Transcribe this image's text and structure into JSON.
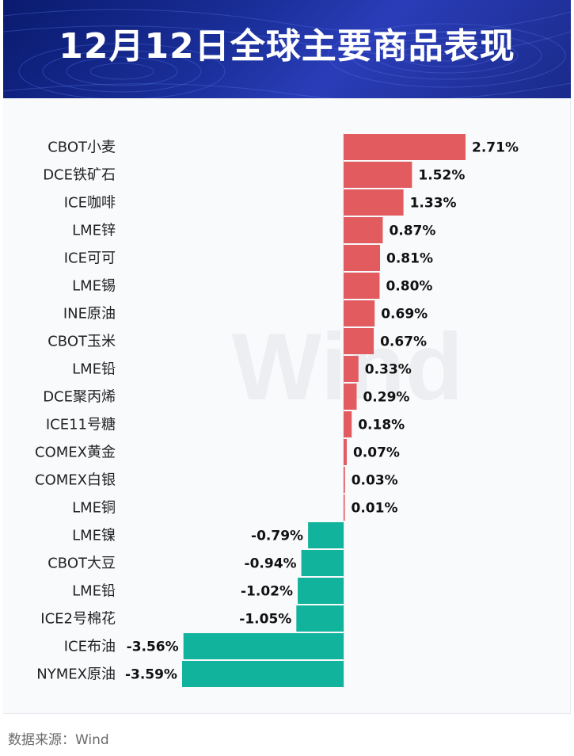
{
  "title": "12月12日全球主要商品表现",
  "source": "数据来源：Wind",
  "watermark": "Wind",
  "colors": {
    "positive": "#e15b5f",
    "negative": "#12b39c",
    "header_bg": "#1a2a8a",
    "panel_bg": "#f9fafc"
  },
  "chart_data": {
    "type": "bar",
    "orientation": "horizontal",
    "unit": "%",
    "categories": [
      "CBOT小麦",
      "DCE铁矿石",
      "ICE咖啡",
      "LME锌",
      "ICE可可",
      "LME锡",
      "INE原油",
      "CBOT玉米",
      "LME铅",
      "DCE聚丙烯",
      "ICE11号糖",
      "COMEX黄金",
      "COMEX白银",
      "LME铜",
      "LME镍",
      "CBOT大豆",
      "LME铅",
      "ICE2号棉花",
      "ICE布油",
      "NYMEX原油"
    ],
    "values": [
      2.71,
      1.52,
      1.33,
      0.87,
      0.81,
      0.8,
      0.69,
      0.67,
      0.33,
      0.29,
      0.18,
      0.07,
      0.03,
      0.01,
      -0.79,
      -0.94,
      -1.02,
      -1.05,
      -3.56,
      -3.59
    ],
    "labels": [
      "2.71%",
      "1.52%",
      "1.33%",
      "0.87%",
      "0.81%",
      "0.80%",
      "0.69%",
      "0.67%",
      "0.33%",
      "0.29%",
      "0.18%",
      "0.07%",
      "0.03%",
      "0.01%",
      "-0.79%",
      "-0.94%",
      "-1.02%",
      "-1.05%",
      "-3.56%",
      "-3.59%"
    ]
  }
}
